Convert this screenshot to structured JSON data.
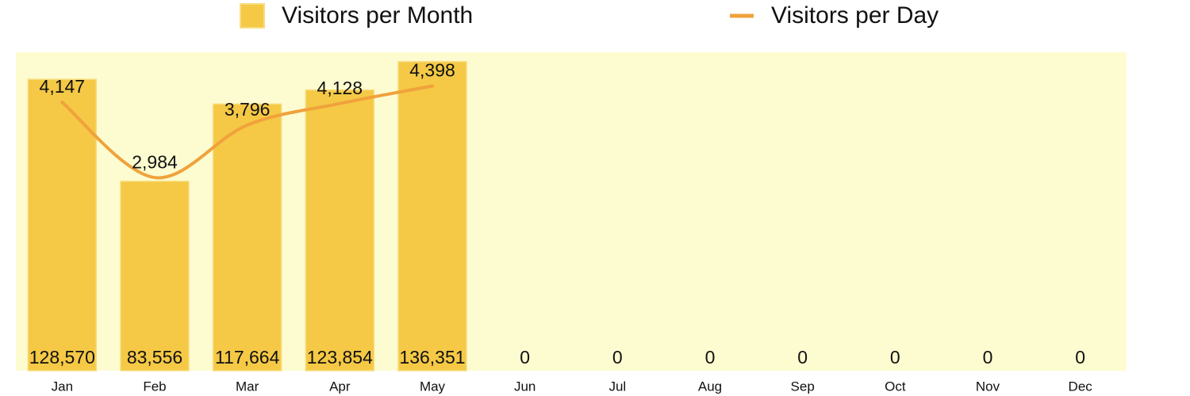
{
  "chart_data": {
    "type": "bar",
    "categories": [
      "Jan",
      "Feb",
      "Mar",
      "Apr",
      "May",
      "Jun",
      "Jul",
      "Aug",
      "Sep",
      "Oct",
      "Nov",
      "Dec"
    ],
    "series": [
      {
        "name": "Visitors per Month",
        "type": "bar",
        "color": "#f5c945",
        "values": [
          128570,
          83556,
          117664,
          123854,
          136351,
          0,
          0,
          0,
          0,
          0,
          0,
          0
        ],
        "value_labels": [
          "128,570",
          "83,556",
          "117,664",
          "123,854",
          "136,351",
          "0",
          "0",
          "0",
          "0",
          "0",
          "0",
          "0"
        ]
      },
      {
        "name": "Visitors per Day",
        "type": "line",
        "color": "#f0a23c",
        "axis": "y2",
        "values": [
          4147,
          2984,
          3796,
          4128,
          4398,
          null,
          null,
          null,
          null,
          null,
          null,
          null
        ],
        "value_labels": [
          "4,147",
          "2,984",
          "3,796",
          "4,128",
          "4,398",
          null,
          null,
          null,
          null,
          null,
          null,
          null
        ]
      }
    ],
    "ylim": [
      0,
      140500
    ],
    "y2lim": [
      0,
      4920
    ],
    "background": "#fdfcd0"
  }
}
